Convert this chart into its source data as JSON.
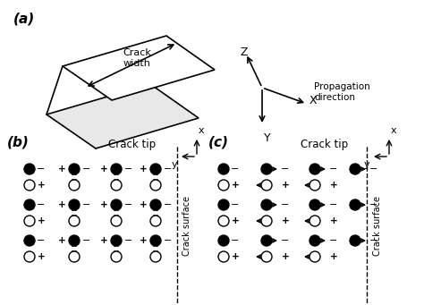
{
  "bg_color": "#ffffff",
  "text_color": "#000000",
  "panel_a_label": "(a)",
  "panel_b_label": "(b)",
  "panel_c_label": "(c)",
  "crack_width_label": "Crack\nwidth",
  "propagation_label": "Propagation\ndirection",
  "z_label": "Z",
  "x_label": "X",
  "y_label": "Y",
  "crack_tip_label": "Crack tip",
  "crack_surface_label": "Crack surface",
  "axis_x_label": "x",
  "axis_y_label": "y"
}
